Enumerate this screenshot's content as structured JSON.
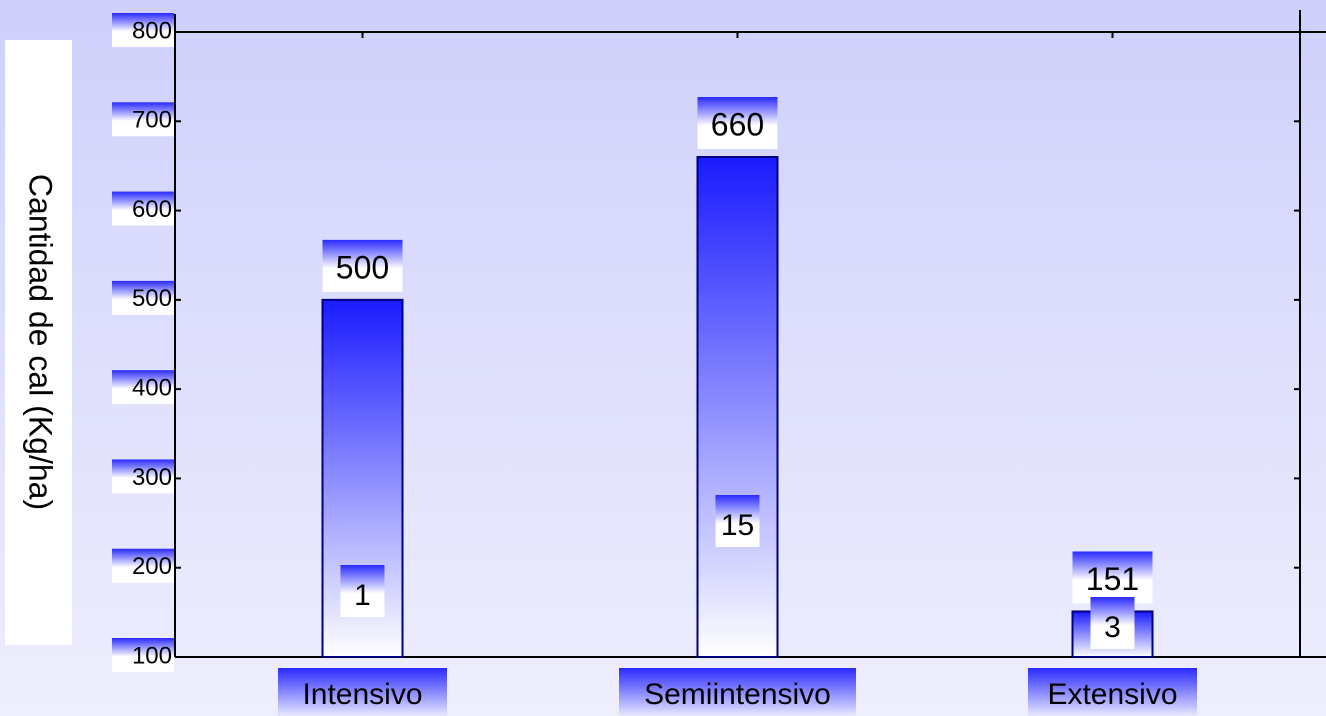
{
  "chart_data": {
    "type": "bar",
    "y_label": "Cantidad de cal (Kg/ha)",
    "categories": [
      "Intensivo",
      "Semiintensivo",
      "Extensivo"
    ],
    "values": [
      500,
      660,
      151
    ],
    "inner_labels": [
      "1",
      "15",
      "3"
    ],
    "color": "#1a1aff",
    "ylim": [
      100,
      800
    ],
    "yticks": [
      100,
      200,
      300,
      400,
      500,
      600,
      700,
      800
    ]
  }
}
